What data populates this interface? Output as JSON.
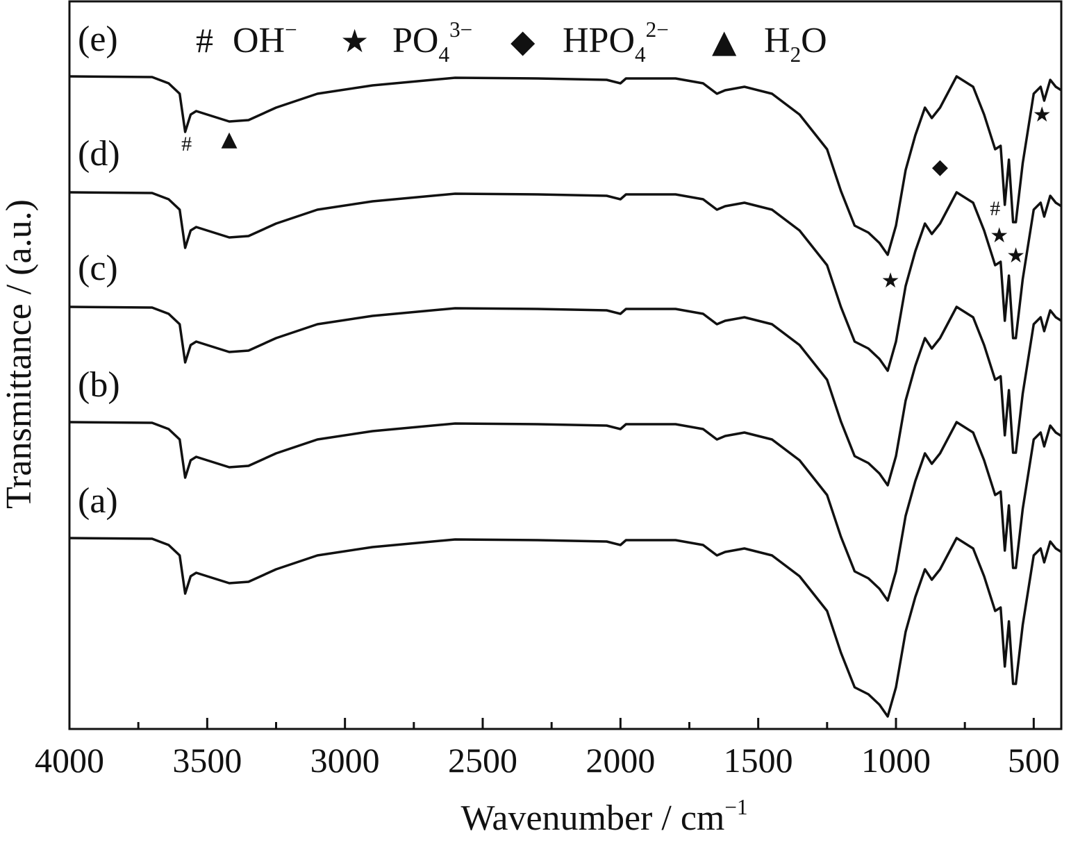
{
  "chart_data": {
    "type": "line",
    "xlabel": [
      {
        "text": "Wavenumber / cm"
      },
      {
        "sup": "−1"
      }
    ],
    "ylabel": "Transmittance / (a.u.)",
    "xlim": [
      4000,
      400
    ],
    "ylim": [
      0,
      1048
    ],
    "xticks": [
      4000,
      3500,
      3000,
      2500,
      2000,
      1500,
      1000,
      500
    ],
    "xminor": [
      3750,
      3250,
      2750,
      2250,
      1750,
      1250,
      750
    ],
    "x": [
      4000,
      3700,
      3640,
      3600,
      3580,
      3560,
      3540,
      3500,
      3420,
      3350,
      3250,
      3100,
      2900,
      2600,
      2300,
      2050,
      2000,
      1980,
      1800,
      1700,
      1650,
      1620,
      1550,
      1450,
      1350,
      1250,
      1200,
      1150,
      1100,
      1060,
      1030,
      1000,
      965,
      930,
      895,
      870,
      840,
      780,
      720,
      680,
      640,
      620,
      605,
      590,
      575,
      565,
      540,
      500,
      475,
      462,
      440,
      420,
      400
    ],
    "series": [
      {
        "name": "(a)",
        "color": "#111111",
        "values": [
          275,
          274,
          265,
          250,
          195,
          220,
          225,
          220,
          210,
          212,
          230,
          250,
          262,
          273,
          272,
          270,
          265,
          272,
          272,
          265,
          250,
          255,
          260,
          250,
          220,
          170,
          110,
          60,
          50,
          35,
          18,
          60,
          140,
          190,
          230,
          215,
          230,
          275,
          260,
          220,
          170,
          175,
          90,
          155,
          65,
          65,
          150,
          250,
          260,
          240,
          270,
          260,
          255
        ]
      },
      {
        "name": "(b)",
        "color": "#111111",
        "values": [
          442,
          441,
          432,
          417,
          362,
          387,
          392,
          387,
          377,
          379,
          397,
          417,
          429,
          440,
          439,
          437,
          432,
          439,
          439,
          432,
          417,
          422,
          427,
          417,
          387,
          337,
          277,
          227,
          217,
          202,
          185,
          227,
          307,
          357,
          397,
          382,
          397,
          442,
          427,
          387,
          337,
          342,
          257,
          322,
          232,
          232,
          317,
          417,
          427,
          407,
          437,
          427,
          422
        ]
      },
      {
        "name": "(c)",
        "color": "#111111",
        "values": [
          608,
          607,
          598,
          583,
          528,
          553,
          558,
          553,
          543,
          545,
          563,
          583,
          595,
          606,
          605,
          603,
          598,
          605,
          605,
          598,
          583,
          588,
          593,
          583,
          553,
          503,
          443,
          393,
          383,
          368,
          351,
          393,
          473,
          523,
          563,
          548,
          563,
          608,
          593,
          553,
          503,
          508,
          423,
          488,
          398,
          398,
          483,
          583,
          593,
          573,
          603,
          593,
          588
        ]
      },
      {
        "name": "(d)",
        "color": "#111111",
        "values": [
          773,
          772,
          763,
          748,
          693,
          718,
          723,
          718,
          708,
          710,
          728,
          748,
          760,
          771,
          770,
          768,
          763,
          770,
          770,
          763,
          748,
          753,
          758,
          748,
          718,
          668,
          608,
          558,
          548,
          533,
          516,
          558,
          638,
          688,
          728,
          713,
          728,
          773,
          758,
          718,
          668,
          673,
          588,
          653,
          563,
          563,
          648,
          748,
          758,
          738,
          768,
          758,
          753
        ]
      },
      {
        "name": "(e)",
        "color": "#111111",
        "values": [
          940,
          939,
          930,
          915,
          860,
          885,
          890,
          885,
          875,
          877,
          895,
          915,
          927,
          938,
          937,
          935,
          930,
          937,
          937,
          930,
          915,
          920,
          925,
          915,
          885,
          835,
          775,
          725,
          715,
          700,
          683,
          725,
          805,
          855,
          895,
          880,
          895,
          940,
          925,
          885,
          835,
          840,
          755,
          820,
          730,
          730,
          815,
          915,
          925,
          905,
          935,
          925,
          920
        ]
      }
    ],
    "key": [
      {
        "symbol": "#",
        "parts": [
          {
            "text": "OH"
          },
          {
            "sup": "−"
          }
        ]
      },
      {
        "symbol": "★",
        "parts": [
          {
            "text": "PO"
          },
          {
            "sub": "4"
          },
          {
            "sup": "3−"
          }
        ]
      },
      {
        "symbol": "◆",
        "parts": [
          {
            "text": "HPO"
          },
          {
            "sub": "4"
          },
          {
            "sup": "2−"
          }
        ]
      },
      {
        "symbol": "▲",
        "parts": [
          {
            "text": "H"
          },
          {
            "sub": "2"
          },
          {
            "text": "O"
          }
        ]
      }
    ],
    "markers": [
      {
        "symbol": "#",
        "x": 3575,
        "y": 845
      },
      {
        "symbol": "▲",
        "x": 3420,
        "y": 852
      },
      {
        "symbol": "★",
        "x": 1020,
        "y": 648
      },
      {
        "symbol": "◆",
        "x": 840,
        "y": 812
      },
      {
        "symbol": "#",
        "x": 640,
        "y": 752
      },
      {
        "symbol": "★",
        "x": 625,
        "y": 713
      },
      {
        "symbol": "★",
        "x": 565,
        "y": 684
      },
      {
        "symbol": "★",
        "x": 470,
        "y": 887
      }
    ]
  }
}
